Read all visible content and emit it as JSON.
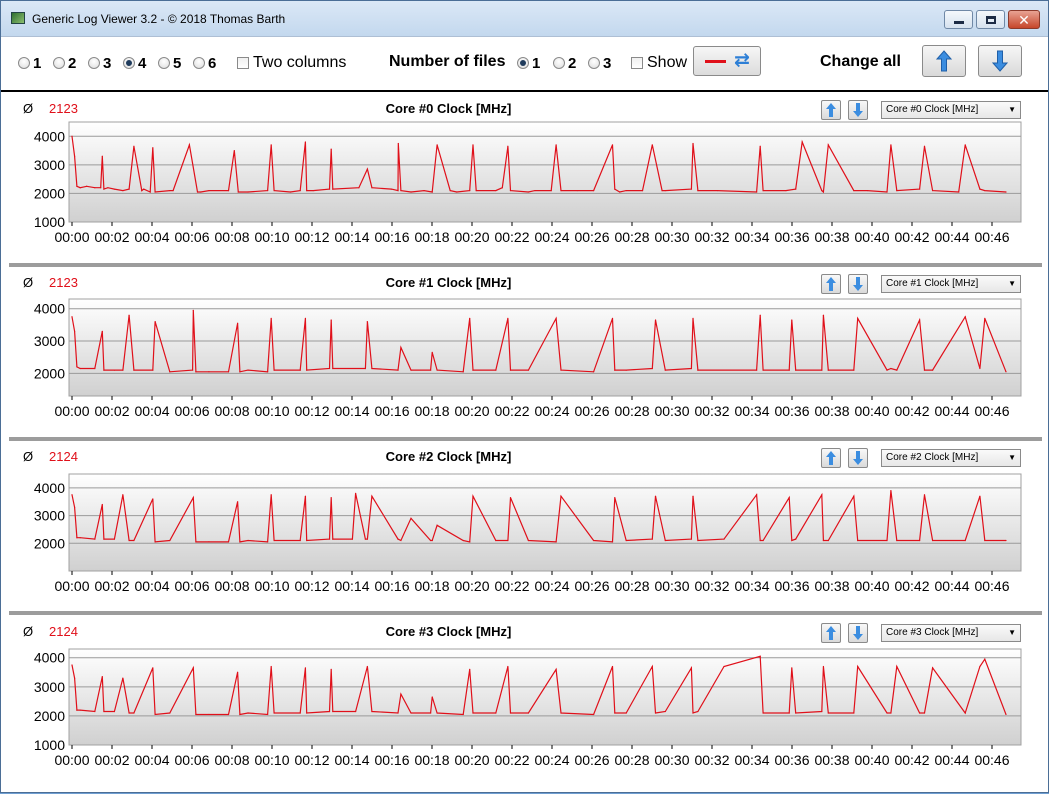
{
  "window": {
    "title": "Generic Log Viewer 3.2 - © 2018 Thomas Barth",
    "close_glyph": "✕"
  },
  "toolbar": {
    "rows_options": [
      "1",
      "2",
      "3",
      "4",
      "5",
      "6"
    ],
    "rows_selected": "4",
    "two_columns_label": "Two columns",
    "number_of_files_label": "Number of files",
    "files_options": [
      "1",
      "2",
      "3"
    ],
    "files_selected": "1",
    "show_label": "Show",
    "change_all_label": "Change all",
    "line_color": "#e0101a",
    "swap_icon": "⇄",
    "icons": [
      "swap-icon",
      "arrow-up-icon",
      "arrow-down-icon"
    ]
  },
  "charts": [
    {
      "average_symbol": "Ø",
      "average": "2123",
      "title": "Core #0 Clock [MHz]",
      "selector": "Core #0 Clock [MHz]"
    },
    {
      "average_symbol": "Ø",
      "average": "2123",
      "title": "Core #1 Clock [MHz]",
      "selector": "Core #1 Clock [MHz]"
    },
    {
      "average_symbol": "Ø",
      "average": "2124",
      "title": "Core #2 Clock [MHz]",
      "selector": "Core #2 Clock [MHz]"
    },
    {
      "average_symbol": "Ø",
      "average": "2124",
      "title": "Core #3 Clock [MHz]",
      "selector": "Core #3 Clock [MHz]"
    }
  ],
  "chart_data": [
    {
      "type": "line",
      "title": "Core #0 Clock [MHz]",
      "xlabel": "",
      "ylabel": "",
      "color": "#e0101a",
      "ylim": [
        1000,
        4500
      ],
      "yticks": [
        "1000",
        "2000",
        "3000",
        "4000"
      ],
      "xlim": [
        0,
        2865
      ],
      "xticks": [
        "00:00",
        "00:02",
        "00:04",
        "00:06",
        "00:08",
        "00:10",
        "00:12",
        "00:14",
        "00:16",
        "00:18",
        "00:20",
        "00:22",
        "00:24",
        "00:26",
        "00:28",
        "00:30",
        "00:32",
        "00:34",
        "00:36",
        "00:38",
        "00:40",
        "00:42",
        "00:44",
        "00:46"
      ],
      "x": [
        0,
        8,
        15,
        25,
        45,
        70,
        88,
        93,
        98,
        110,
        130,
        156,
        175,
        190,
        214,
        220,
        240,
        248,
        255,
        300,
        310,
        360,
        385,
        395,
        420,
        480,
        498,
        510,
        540,
        600,
        611,
        620,
        670,
        700,
        716,
        720,
        740,
        790,
        795,
        800,
        880,
        906,
        920,
        980,
        1000,
        1001,
        1009,
        1040,
        1080,
        1105,
        1120,
        1160,
        1180,
        1220,
        1230,
        1240,
        1300,
        1320,
        1337,
        1345,
        1400,
        1420,
        1470,
        1485,
        1500,
        1550,
        1600,
        1658,
        1665,
        1680,
        1700,
        1750,
        1780,
        1810,
        1820,
        1900,
        1905,
        1920,
        1980,
        2100,
        2111,
        2120,
        2190,
        2220,
        2240,
        2300,
        2305,
        2320,
        2398,
        2440,
        2500,
        2512,
        2530,
        2600,
        2615,
        2640,
        2720,
        2740,
        2785,
        2800,
        2865
      ],
      "values": [
        4000,
        3300,
        2250,
        2200,
        2250,
        2200,
        2200,
        3300,
        2150,
        2200,
        2150,
        2100,
        2150,
        3650,
        2100,
        2150,
        2050,
        3600,
        2050,
        2100,
        2100,
        3700,
        2050,
        2050,
        2100,
        2100,
        3500,
        2050,
        2050,
        2100,
        3700,
        2100,
        2050,
        2100,
        3800,
        2100,
        2100,
        2150,
        3550,
        2150,
        2200,
        2850,
        2200,
        2150,
        2100,
        3750,
        2100,
        2050,
        2100,
        2050,
        3700,
        2100,
        2050,
        2100,
        3700,
        2100,
        2100,
        2200,
        3650,
        2100,
        2050,
        2100,
        2100,
        3700,
        2100,
        2100,
        2100,
        3700,
        2150,
        2050,
        2100,
        2100,
        3700,
        2100,
        2100,
        2150,
        3750,
        2100,
        2100,
        2050,
        3650,
        2100,
        2100,
        2150,
        3800,
        2100,
        2050,
        3700,
        2100,
        2100,
        2050,
        3700,
        2100,
        2150,
        3650,
        2100,
        2050,
        3700,
        2150,
        2100,
        2050
      ]
    },
    {
      "type": "line",
      "title": "Core #1 Clock [MHz]",
      "xlabel": "",
      "ylabel": "",
      "color": "#e0101a",
      "ylim": [
        1300,
        4300
      ],
      "yticks": [
        "2000",
        "3000",
        "4000"
      ],
      "xlim": [
        0,
        2865
      ],
      "xticks": [
        "00:00",
        "00:02",
        "00:04",
        "00:06",
        "00:08",
        "00:10",
        "00:12",
        "00:14",
        "00:16",
        "00:18",
        "00:20",
        "00:22",
        "00:24",
        "00:26",
        "00:28",
        "00:30",
        "00:32",
        "00:34",
        "00:36",
        "00:38",
        "00:40",
        "00:42",
        "00:44",
        "00:46"
      ],
      "x": [
        0,
        8,
        15,
        25,
        70,
        93,
        98,
        130,
        156,
        175,
        190,
        248,
        255,
        300,
        370,
        372,
        380,
        420,
        480,
        508,
        515,
        540,
        600,
        611,
        620,
        700,
        716,
        720,
        790,
        795,
        800,
        900,
        906,
        920,
        1000,
        1009,
        1040,
        1100,
        1105,
        1120,
        1200,
        1220,
        1230,
        1300,
        1337,
        1345,
        1400,
        1485,
        1500,
        1600,
        1658,
        1665,
        1700,
        1780,
        1790,
        1820,
        1900,
        1905,
        1920,
        2100,
        2111,
        2120,
        2200,
        2208,
        2220,
        2300,
        2305,
        2320,
        2398,
        2410,
        2500,
        2512,
        2530,
        2600,
        2615,
        2640,
        2740,
        2785,
        2800,
        2865
      ],
      "values": [
        3750,
        3300,
        2200,
        2150,
        2150,
        3300,
        2100,
        2100,
        2100,
        3800,
        2100,
        2100,
        3600,
        2050,
        2100,
        3950,
        2050,
        2050,
        2050,
        3550,
        2050,
        2100,
        2050,
        3700,
        2100,
        2100,
        3700,
        2100,
        2150,
        3650,
        2150,
        2150,
        3600,
        2150,
        2100,
        2800,
        2100,
        2100,
        2650,
        2100,
        2050,
        3700,
        2100,
        2100,
        3700,
        2100,
        2100,
        3700,
        2100,
        2050,
        3700,
        2100,
        2100,
        2150,
        3650,
        2100,
        2150,
        3700,
        2100,
        2100,
        3800,
        2100,
        2100,
        3650,
        2100,
        2100,
        3800,
        2100,
        2100,
        3700,
        2100,
        2150,
        2100,
        3650,
        2100,
        2100,
        3750,
        2150,
        3700,
        2050
      ]
    },
    {
      "type": "line",
      "title": "Core #2 Clock [MHz]",
      "xlabel": "",
      "ylabel": "",
      "color": "#e0101a",
      "ylim": [
        1000,
        4500
      ],
      "yticks": [
        "2000",
        "3000",
        "4000"
      ],
      "xlim": [
        0,
        2865
      ],
      "xticks": [
        "00:00",
        "00:02",
        "00:04",
        "00:06",
        "00:08",
        "00:10",
        "00:12",
        "00:14",
        "00:16",
        "00:18",
        "00:20",
        "00:22",
        "00:24",
        "00:26",
        "00:28",
        "00:30",
        "00:32",
        "00:34",
        "00:36",
        "00:38",
        "00:40",
        "00:42",
        "00:44",
        "00:46"
      ],
      "x": [
        0,
        8,
        15,
        25,
        70,
        93,
        98,
        130,
        156,
        175,
        190,
        248,
        255,
        300,
        372,
        380,
        420,
        480,
        508,
        515,
        540,
        600,
        611,
        620,
        700,
        716,
        720,
        790,
        795,
        800,
        860,
        870,
        900,
        906,
        920,
        1000,
        1009,
        1040,
        1100,
        1105,
        1120,
        1200,
        1220,
        1230,
        1300,
        1337,
        1345,
        1400,
        1485,
        1500,
        1600,
        1658,
        1665,
        1700,
        1780,
        1790,
        1820,
        1900,
        1905,
        1920,
        2000,
        2100,
        2111,
        2120,
        2200,
        2208,
        2220,
        2300,
        2305,
        2320,
        2398,
        2410,
        2500,
        2512,
        2530,
        2600,
        2615,
        2640,
        2740,
        2785,
        2800,
        2865
      ],
      "values": [
        3750,
        3300,
        2200,
        2200,
        2150,
        3400,
        2150,
        2150,
        3750,
        2100,
        2100,
        3600,
        2050,
        2100,
        3650,
        2050,
        2050,
        2050,
        3500,
        2050,
        2100,
        2050,
        3750,
        2100,
        2100,
        3700,
        2100,
        2150,
        3650,
        2150,
        2150,
        3800,
        2150,
        2150,
        3700,
        2150,
        2100,
        2900,
        2100,
        2100,
        2650,
        2100,
        2050,
        3700,
        2100,
        2100,
        3650,
        2100,
        2050,
        3700,
        2100,
        2050,
        3650,
        2100,
        2150,
        3700,
        2100,
        2150,
        3700,
        2100,
        2150,
        3750,
        2100,
        2100,
        3650,
        2100,
        2150,
        3750,
        2100,
        2100,
        3700,
        2100,
        2100,
        3900,
        2100,
        2100,
        3750,
        2100,
        2100,
        3700,
        2100,
        2100
      ]
    },
    {
      "type": "line",
      "title": "Core #3 Clock [MHz]",
      "xlabel": "",
      "ylabel": "",
      "color": "#e0101a",
      "ylim": [
        1000,
        4300
      ],
      "yticks": [
        "1000",
        "2000",
        "3000",
        "4000"
      ],
      "xlim": [
        0,
        2865
      ],
      "xticks": [
        "00:00",
        "00:02",
        "00:04",
        "00:06",
        "00:08",
        "00:10",
        "00:12",
        "00:14",
        "00:16",
        "00:18",
        "00:20",
        "00:22",
        "00:24",
        "00:26",
        "00:28",
        "00:30",
        "00:32",
        "00:34",
        "00:36",
        "00:38",
        "00:40",
        "00:42",
        "00:44",
        "00:46"
      ],
      "x": [
        0,
        8,
        15,
        25,
        70,
        93,
        98,
        130,
        156,
        175,
        190,
        248,
        255,
        300,
        372,
        380,
        420,
        480,
        508,
        515,
        540,
        600,
        611,
        620,
        700,
        716,
        720,
        790,
        795,
        800,
        870,
        906,
        920,
        1000,
        1009,
        1040,
        1100,
        1105,
        1120,
        1200,
        1220,
        1230,
        1300,
        1337,
        1345,
        1400,
        1485,
        1500,
        1600,
        1658,
        1665,
        1700,
        1780,
        1790,
        1820,
        1900,
        1905,
        1920,
        2000,
        2111,
        2120,
        2200,
        2208,
        2220,
        2300,
        2305,
        2320,
        2398,
        2410,
        2500,
        2512,
        2530,
        2600,
        2615,
        2640,
        2740,
        2785,
        2800,
        2865
      ],
      "values": [
        3750,
        3300,
        2200,
        2200,
        2150,
        3350,
        2150,
        2150,
        3300,
        2100,
        2100,
        3650,
        2050,
        2100,
        3650,
        2050,
        2050,
        2050,
        3500,
        2050,
        2100,
        2050,
        3700,
        2100,
        2100,
        3650,
        2100,
        2150,
        3600,
        2150,
        2150,
        3700,
        2150,
        2100,
        2750,
        2100,
        2100,
        2650,
        2100,
        2050,
        3600,
        2100,
        2100,
        3700,
        2100,
        2100,
        3600,
        2100,
        2050,
        3700,
        2100,
        2100,
        3700,
        2100,
        2150,
        3650,
        2100,
        2150,
        3700,
        4050,
        2100,
        2100,
        3650,
        2100,
        2150,
        3700,
        2100,
        2100,
        3700,
        2100,
        2100,
        3700,
        2100,
        2100,
        3650,
        2100,
        3700,
        3950,
        2050
      ]
    }
  ]
}
